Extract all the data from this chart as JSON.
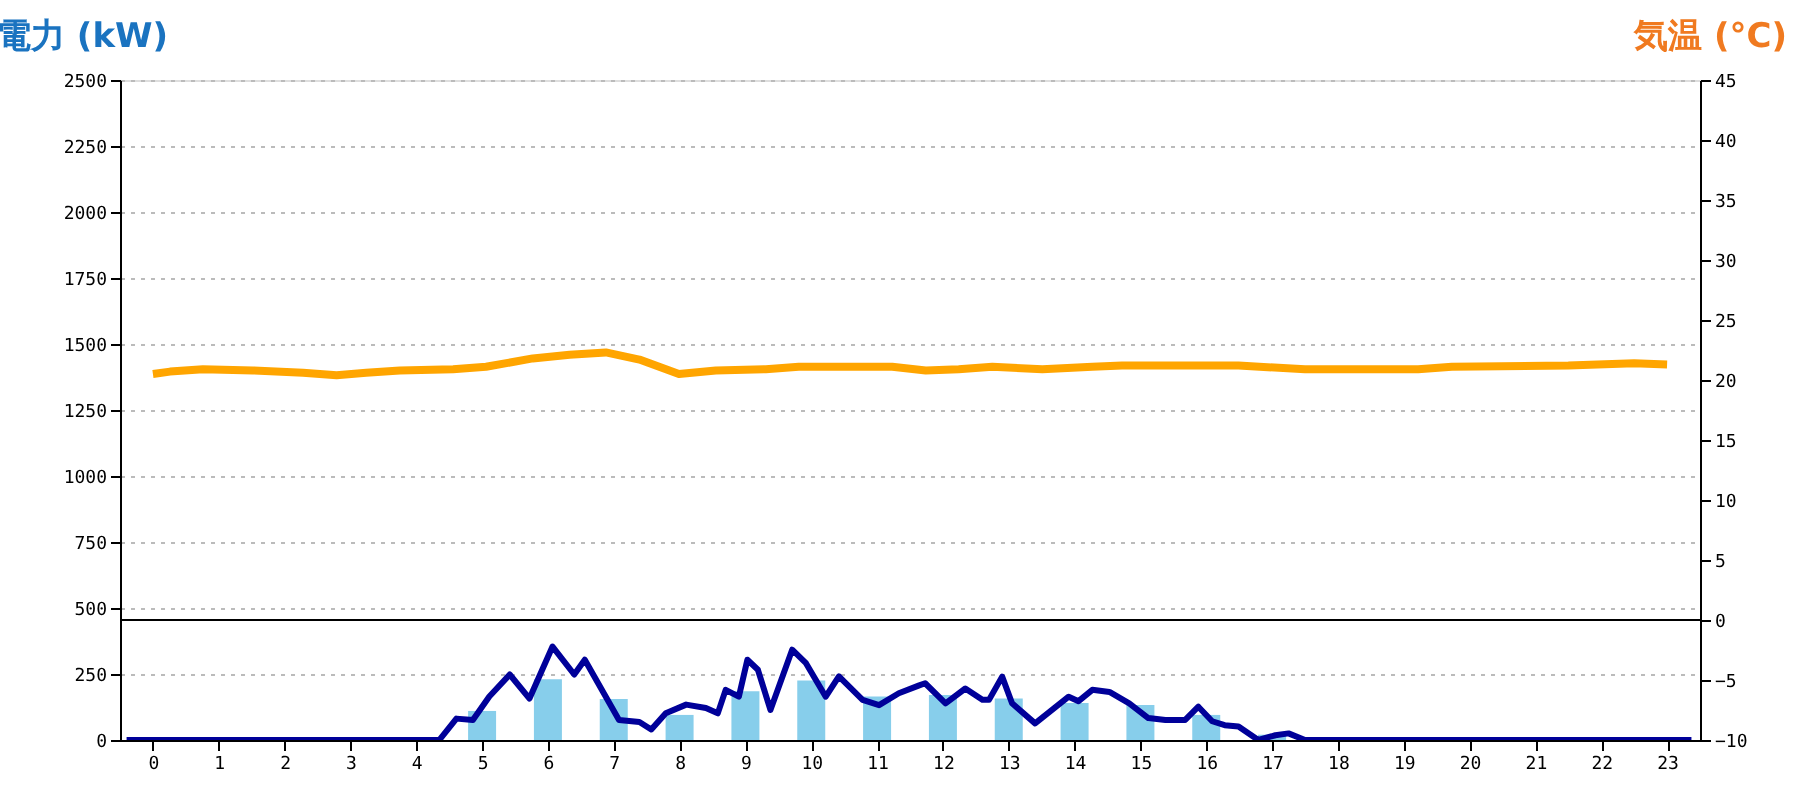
{
  "chart_data": {
    "type": "bar",
    "ylabel": "電力 (kW)",
    "y2label": "気温 (°C)",
    "x": [
      0,
      1,
      2,
      3,
      4,
      5,
      6,
      7,
      8,
      9,
      10,
      11,
      12,
      13,
      14,
      15,
      16,
      17,
      18,
      19,
      20,
      21,
      22,
      23
    ],
    "xlim": [
      -0.5,
      23.5
    ],
    "xticks": [
      0,
      1,
      2,
      3,
      4,
      5,
      6,
      7,
      8,
      9,
      10,
      11,
      12,
      13,
      14,
      15,
      16,
      17,
      18,
      19,
      20,
      21,
      22,
      23
    ],
    "ylim": [
      0,
      2500
    ],
    "yticks": [
      0,
      250,
      500,
      750,
      1000,
      1250,
      1500,
      1750,
      2000,
      2250,
      2500
    ],
    "y2lim": [
      -10,
      45
    ],
    "y2ticks": [
      -10,
      -5,
      0,
      5,
      10,
      15,
      20,
      25,
      30,
      35,
      40,
      45
    ],
    "grid": "y",
    "series": [
      {
        "color": "#87ceeb",
        "values": [
          0,
          0,
          0,
          0,
          0,
          110,
          230,
          155,
          95,
          185,
          225,
          165,
          170,
          157,
          140,
          133,
          95,
          20,
          0,
          0,
          0,
          0,
          0,
          0
        ]
      },
      {
        "type": "line",
        "color": "#000099",
        "x": [
          -0.4,
          4.35,
          4.61,
          4.86,
          5.11,
          5.42,
          5.72,
          6.07,
          6.4,
          6.56,
          7.08,
          7.39,
          7.57,
          7.79,
          8.1,
          8.4,
          8.58,
          8.7,
          8.9,
          9.03,
          9.19,
          9.38,
          9.71,
          9.92,
          10.22,
          10.42,
          10.78,
          11.03,
          11.33,
          11.64,
          11.73,
          12.04,
          12.34,
          12.6,
          12.7,
          12.9,
          13.05,
          13.4,
          13.91,
          14.06,
          14.27,
          14.53,
          14.83,
          15.12,
          15.38,
          15.68,
          15.88,
          16.09,
          16.28,
          16.49,
          16.79,
          17.05,
          17.25,
          17.5,
          23.37
        ],
        "values": [
          0,
          0,
          81,
          76,
          165,
          248,
          157,
          354,
          248,
          304,
          76,
          68,
          40,
          101,
          134,
          121,
          101,
          190,
          164,
          304,
          266,
          114,
          342,
          291,
          164,
          241,
          152,
          132,
          177,
          207,
          215,
          139,
          195,
          152,
          152,
          240,
          139,
          63,
          164,
          147,
          190,
          182,
          139,
          83,
          76,
          76,
          126,
          71,
          56,
          51,
          0,
          18,
          25,
          0,
          0
        ]
      },
      {
        "type": "line",
        "axis": "y2",
        "color": "#ffa500",
        "x": [
          0.0,
          0.26,
          0.76,
          1.52,
          2.28,
          2.79,
          3.24,
          3.75,
          4.56,
          5.06,
          5.77,
          6.33,
          6.88,
          7.39,
          7.99,
          8.55,
          9.31,
          9.81,
          11.23,
          11.74,
          12.24,
          12.75,
          13.51,
          14.27,
          14.72,
          16.49,
          17.5,
          19.22,
          19.73,
          21.5,
          22.5,
          23.0
        ],
        "values": [
          20.5,
          20.7,
          20.9,
          20.8,
          20.6,
          20.4,
          20.6,
          20.8,
          20.9,
          21.1,
          21.8,
          22.1,
          22.3,
          21.7,
          20.5,
          20.8,
          20.9,
          21.1,
          21.1,
          20.8,
          20.9,
          21.1,
          20.9,
          21.1,
          21.2,
          21.2,
          20.9,
          20.9,
          21.1,
          21.2,
          21.4,
          21.3
        ]
      }
    ],
    "ref_lines": [
      {
        "axis": "y2",
        "value": 0,
        "color": "#000000"
      }
    ]
  }
}
